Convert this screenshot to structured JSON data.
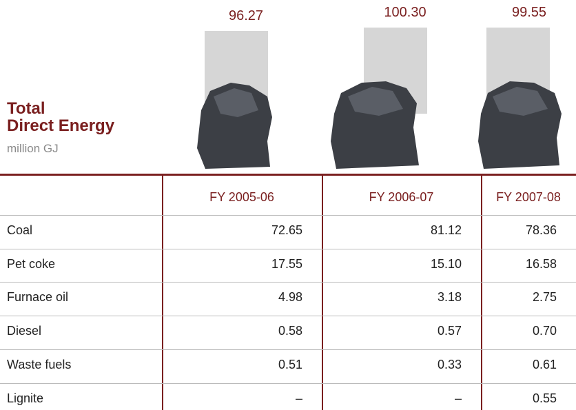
{
  "header": {
    "title_lines": [
      "Total",
      "Direct Energy"
    ],
    "unit": "million GJ"
  },
  "totals": [
    "96.27",
    "100.30",
    "99.55"
  ],
  "table": {
    "columns": [
      "FY 2005-06",
      "FY 2006-07",
      "FY 2007-08"
    ],
    "rows": [
      [
        "Coal",
        "72.65",
        "81.12",
        "78.36"
      ],
      [
        "Pet coke",
        "17.55",
        "15.10",
        "16.58"
      ],
      [
        "Furnace oil",
        "4.98",
        "3.18",
        "2.75"
      ],
      [
        "Diesel",
        "0.58",
        "0.57",
        "0.70"
      ],
      [
        "Waste fuels",
        "0.51",
        "0.33",
        "0.61"
      ],
      [
        "Lignite",
        "–",
        "–",
        "0.55"
      ]
    ]
  }
}
